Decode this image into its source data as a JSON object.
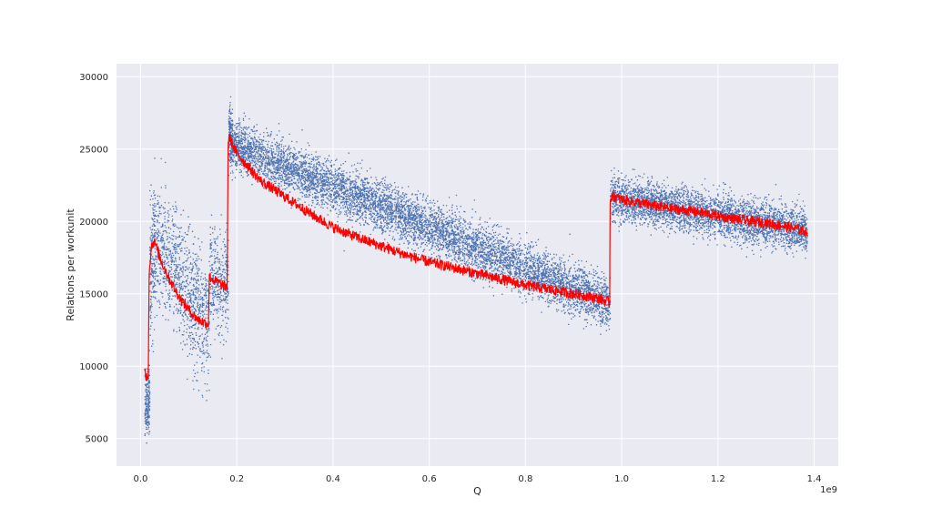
{
  "chart_data": {
    "type": "scatter",
    "title": "",
    "xlabel": "Q",
    "ylabel": "Relations per workunit",
    "x_offset_label": "1e9",
    "x_scale_exponent": 9,
    "xlim": [
      -0.05,
      1.45
    ],
    "ylim": [
      3100,
      30900
    ],
    "x_ticks": [
      0.0,
      0.2,
      0.4,
      0.6,
      0.8,
      1.0,
      1.2,
      1.4
    ],
    "x_tick_labels": [
      "0.0",
      "0.2",
      "0.4",
      "0.6",
      "0.8",
      "1.0",
      "1.2",
      "1.4"
    ],
    "y_ticks": [
      5000,
      10000,
      15000,
      20000,
      25000,
      30000
    ],
    "y_tick_labels": [
      "5000",
      "10000",
      "15000",
      "20000",
      "25000",
      "30000"
    ],
    "grid": true,
    "legend": "none",
    "colors": {
      "background": "#eaeaf2",
      "grid": "#ffffff",
      "scatter": "#4c72b0",
      "moving_average": "#ff0000"
    },
    "series": [
      {
        "kind": "scatter",
        "color": "#4c72b0",
        "segments": [
          {
            "x": [
              0.008,
              0.018
            ],
            "y_center": [
              7000,
              8000
            ],
            "y_spread": 2200
          },
          {
            "x": [
              0.018,
              0.03
            ],
            "y_center": [
              16000,
              18500
            ],
            "y_spread": 4500
          },
          {
            "x": [
              0.03,
              0.142
            ],
            "y_center": [
              18500,
              12700
            ],
            "y_spread": 4200
          },
          {
            "x": [
              0.143,
              0.182
            ],
            "y_center": [
              16500,
              15200
            ],
            "y_spread": 3500
          },
          {
            "x": [
              0.182,
              0.19
            ],
            "y_center": [
              26000,
              25500
            ],
            "y_spread": 2300
          },
          {
            "x": [
              0.19,
              0.975
            ],
            "y_center": [
              25300,
              14300
            ],
            "y_spread": 1700
          },
          {
            "x": [
              0.975,
              1.385
            ],
            "y_center": [
              21700,
              19300
            ],
            "y_spread": 1500
          }
        ]
      },
      {
        "kind": "line",
        "color": "#ff0000",
        "x": [
          0.008,
          0.012,
          0.016,
          0.018,
          0.022,
          0.026,
          0.03,
          0.04,
          0.06,
          0.08,
          0.1,
          0.12,
          0.141,
          0.143,
          0.15,
          0.16,
          0.17,
          0.18,
          0.182,
          0.185,
          0.2,
          0.25,
          0.3,
          0.35,
          0.4,
          0.45,
          0.5,
          0.55,
          0.6,
          0.65,
          0.7,
          0.75,
          0.8,
          0.85,
          0.9,
          0.95,
          0.975,
          0.976,
          0.98,
          1.0,
          1.05,
          1.1,
          1.15,
          1.2,
          1.25,
          1.3,
          1.35,
          1.385
        ],
        "y": [
          10000,
          9200,
          9500,
          16500,
          18200,
          18600,
          18500,
          17500,
          16000,
          14800,
          13900,
          13200,
          12900,
          16200,
          16000,
          15800,
          15600,
          15400,
          25500,
          25800,
          24700,
          22800,
          21700,
          20600,
          19600,
          18900,
          18300,
          17700,
          17200,
          16800,
          16400,
          16000,
          15600,
          15300,
          15000,
          14700,
          14400,
          21500,
          21800,
          21500,
          21200,
          20900,
          20700,
          20400,
          20100,
          19900,
          19600,
          19300
        ]
      }
    ]
  }
}
